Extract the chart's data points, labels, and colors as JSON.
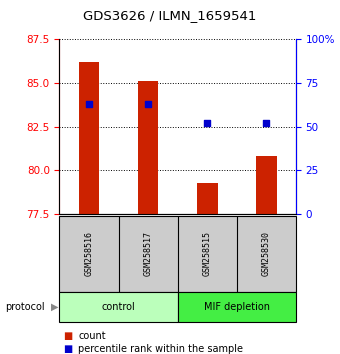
{
  "title": "GDS3626 / ILMN_1659541",
  "samples": [
    "GSM258516",
    "GSM258517",
    "GSM258515",
    "GSM258530"
  ],
  "bar_values": [
    86.2,
    85.1,
    79.3,
    80.8
  ],
  "percentile_values": [
    63,
    63,
    52,
    52
  ],
  "bar_bottom": 77.5,
  "ylim_left": [
    77.5,
    87.5
  ],
  "ylim_right": [
    0,
    100
  ],
  "yticks_left": [
    77.5,
    80.0,
    82.5,
    85.0,
    87.5
  ],
  "yticks_right": [
    0,
    25,
    50,
    75,
    100
  ],
  "ytick_labels_right": [
    "0",
    "25",
    "50",
    "75",
    "100%"
  ],
  "bar_color": "#cc2200",
  "dot_color": "#0000cc",
  "groups": [
    {
      "label": "control",
      "samples": [
        0,
        1
      ],
      "color": "#bbffbb"
    },
    {
      "label": "MIF depletion",
      "samples": [
        2,
        3
      ],
      "color": "#44ee44"
    }
  ],
  "protocol_label": "protocol",
  "legend_count_label": "count",
  "legend_pct_label": "percentile rank within the sample",
  "bar_width": 0.35,
  "label_box_color": "#cccccc",
  "fig_width": 3.4,
  "fig_height": 3.54
}
